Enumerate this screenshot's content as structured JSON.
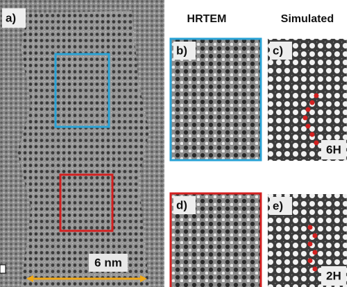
{
  "header": {
    "hrtem": "HRTEM",
    "simulated": "Simulated"
  },
  "panels": [
    {
      "label": "a)"
    },
    {
      "label": "b)"
    },
    {
      "label": "c)",
      "polytype": "6H"
    },
    {
      "label": "d)"
    },
    {
      "label": "e)",
      "polytype": "2H"
    }
  ],
  "scale_bar": {
    "label": "6 nm"
  }
}
